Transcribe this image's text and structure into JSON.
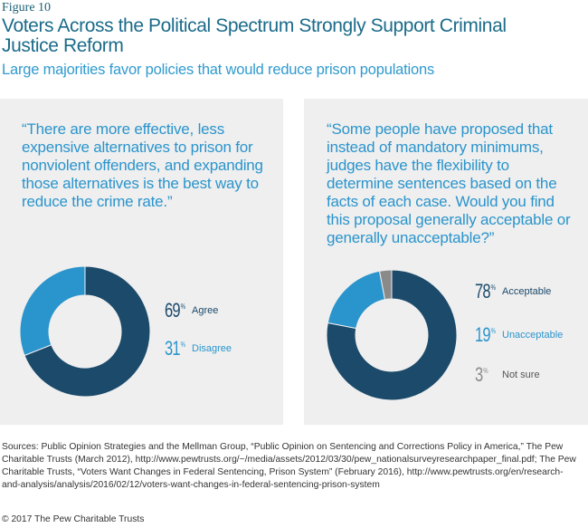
{
  "figure_label": "Figure 10",
  "title": "Voters Across the Political Spectrum Strongly Support Criminal Justice Reform",
  "subtitle": "Large majorities favor policies that would reduce prison populations",
  "colors": {
    "dark_blue": "#1b4a6b",
    "mid_blue": "#2a94cc",
    "gray": "#8a8a8a",
    "panel_bg": "#efefef"
  },
  "panels": [
    {
      "quote": "“There are more effective, less expensive alternatives to prison for nonviolent offenders, and expanding those alternatives is the best way to reduce the crime rate.”",
      "legend": [
        {
          "value": "69",
          "suffix": "%",
          "label": "Agree"
        },
        {
          "value": "31",
          "suffix": "%",
          "label": "Disagree"
        }
      ]
    },
    {
      "quote": "“Some people have proposed that instead of mandatory minimums, judges have the flexibility to determine sentences based on the facts of each case. Would you find this proposal generally acceptable or generally unacceptable?”",
      "legend": [
        {
          "value": "78",
          "suffix": "%",
          "label": "Acceptable"
        },
        {
          "value": "19",
          "suffix": "%",
          "label": "Unacceptable"
        },
        {
          "value": "3",
          "suffix": "%",
          "label": "Not sure"
        }
      ]
    }
  ],
  "chart_data": [
    {
      "type": "pie",
      "categories": [
        "Agree",
        "Disagree"
      ],
      "values": [
        69,
        31
      ],
      "colors": [
        "#1b4a6b",
        "#2a94cc"
      ]
    },
    {
      "type": "pie",
      "categories": [
        "Acceptable",
        "Unacceptable",
        "Not sure"
      ],
      "values": [
        78,
        19,
        3
      ],
      "colors": [
        "#1b4a6b",
        "#2a94cc",
        "#8a8a8a"
      ]
    }
  ],
  "sources": "Sources: Public Opinion Strategies and the Mellman Group, “Public Opinion on Sentencing and Corrections Policy in America,” The Pew Charitable Trusts (March 2012), http://www.pewtrusts.org/~/media/assets/2012/03/30/pew_nationalsurveyresearchpaper_final.pdf; The Pew Charitable Trusts, “Voters Want Changes in Federal Sentencing, Prison System” (February 2016), http://www.pewtrusts.org/en/research-and-analysis/analysis/2016/02/12/voters-want-changes-in-federal-sentencing-prison-system",
  "copyright": "© 2017 The Pew Charitable Trusts"
}
